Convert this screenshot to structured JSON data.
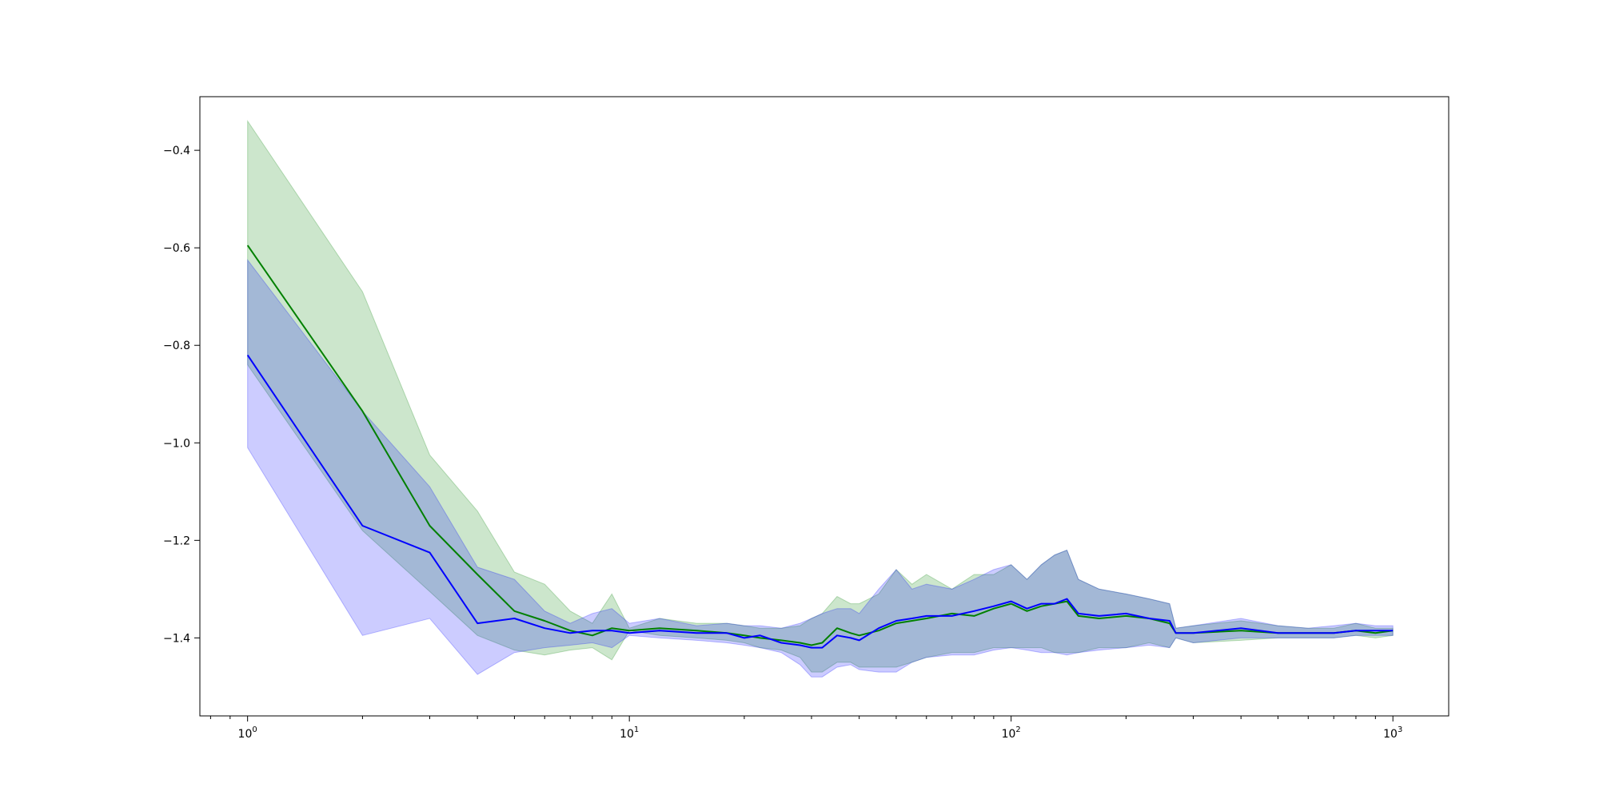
{
  "chart_data": {
    "type": "line",
    "title": "",
    "xlabel": "",
    "ylabel": "",
    "xscale": "log",
    "xlim": [
      0.75,
      1400
    ],
    "ylim": [
      -1.56,
      -0.29
    ],
    "grid": false,
    "legend": "none",
    "x_ticks": [
      {
        "value": 1,
        "base": "10",
        "exp": "0"
      },
      {
        "value": 10,
        "base": "10",
        "exp": "1"
      },
      {
        "value": 100,
        "base": "10",
        "exp": "2"
      },
      {
        "value": 1000,
        "base": "10",
        "exp": "3"
      }
    ],
    "y_ticks": [
      {
        "value": -0.4,
        "label": "−0.4"
      },
      {
        "value": -0.6,
        "label": "−0.6"
      },
      {
        "value": -0.8,
        "label": "−0.8"
      },
      {
        "value": -1.0,
        "label": "−1.0"
      },
      {
        "value": -1.2,
        "label": "−1.2"
      },
      {
        "value": -1.4,
        "label": "−1.4"
      }
    ],
    "series": [
      {
        "color": "#008000",
        "band_color": "#008000",
        "x": [
          1,
          2,
          3,
          4,
          5,
          6,
          7,
          8,
          9,
          10,
          12,
          15,
          18,
          20,
          22,
          25,
          28,
          30,
          32,
          35,
          38,
          40,
          45,
          50,
          55,
          60,
          70,
          80,
          90,
          100,
          110,
          120,
          130,
          140,
          150,
          170,
          200,
          230,
          260,
          270,
          300,
          400,
          500,
          600,
          700,
          800,
          900,
          1000
        ],
        "mean": [
          -0.595,
          -0.935,
          -1.17,
          -1.27,
          -1.345,
          -1.365,
          -1.385,
          -1.395,
          -1.38,
          -1.385,
          -1.38,
          -1.385,
          -1.39,
          -1.395,
          -1.4,
          -1.405,
          -1.41,
          -1.415,
          -1.41,
          -1.38,
          -1.39,
          -1.395,
          -1.385,
          -1.37,
          -1.365,
          -1.36,
          -1.35,
          -1.355,
          -1.34,
          -1.33,
          -1.345,
          -1.335,
          -1.33,
          -1.325,
          -1.355,
          -1.36,
          -1.355,
          -1.36,
          -1.37,
          -1.39,
          -1.39,
          -1.385,
          -1.39,
          -1.39,
          -1.39,
          -1.385,
          -1.39,
          -1.385
        ],
        "upper": [
          -0.34,
          -0.69,
          -1.025,
          -1.14,
          -1.265,
          -1.29,
          -1.345,
          -1.37,
          -1.31,
          -1.38,
          -1.36,
          -1.37,
          -1.37,
          -1.375,
          -1.38,
          -1.38,
          -1.375,
          -1.36,
          -1.35,
          -1.315,
          -1.33,
          -1.33,
          -1.31,
          -1.26,
          -1.29,
          -1.27,
          -1.3,
          -1.27,
          -1.27,
          -1.25,
          -1.28,
          -1.25,
          -1.23,
          -1.22,
          -1.28,
          -1.3,
          -1.31,
          -1.32,
          -1.33,
          -1.38,
          -1.375,
          -1.365,
          -1.375,
          -1.38,
          -1.38,
          -1.37,
          -1.38,
          -1.38
        ],
        "lower": [
          -0.84,
          -1.18,
          -1.305,
          -1.395,
          -1.425,
          -1.435,
          -1.425,
          -1.42,
          -1.445,
          -1.385,
          -1.395,
          -1.4,
          -1.405,
          -1.41,
          -1.42,
          -1.425,
          -1.44,
          -1.47,
          -1.47,
          -1.45,
          -1.45,
          -1.46,
          -1.46,
          -1.46,
          -1.45,
          -1.44,
          -1.43,
          -1.43,
          -1.42,
          -1.42,
          -1.42,
          -1.42,
          -1.43,
          -1.43,
          -1.43,
          -1.42,
          -1.42,
          -1.41,
          -1.42,
          -1.4,
          -1.41,
          -1.405,
          -1.4,
          -1.4,
          -1.4,
          -1.395,
          -1.4,
          -1.395
        ]
      },
      {
        "color": "#0000ff",
        "band_color": "#0000ff",
        "x": [
          1,
          2,
          3,
          4,
          5,
          6,
          7,
          8,
          9,
          10,
          12,
          15,
          18,
          20,
          22,
          25,
          28,
          30,
          32,
          35,
          38,
          40,
          45,
          50,
          55,
          60,
          70,
          80,
          90,
          100,
          110,
          120,
          130,
          140,
          150,
          170,
          200,
          230,
          260,
          270,
          300,
          400,
          500,
          600,
          700,
          800,
          900,
          1000
        ],
        "mean": [
          -0.82,
          -1.17,
          -1.225,
          -1.37,
          -1.36,
          -1.38,
          -1.39,
          -1.385,
          -1.385,
          -1.39,
          -1.385,
          -1.39,
          -1.39,
          -1.4,
          -1.395,
          -1.41,
          -1.415,
          -1.42,
          -1.42,
          -1.395,
          -1.4,
          -1.405,
          -1.38,
          -1.365,
          -1.36,
          -1.355,
          -1.355,
          -1.345,
          -1.335,
          -1.325,
          -1.34,
          -1.33,
          -1.33,
          -1.32,
          -1.35,
          -1.355,
          -1.35,
          -1.36,
          -1.365,
          -1.39,
          -1.39,
          -1.38,
          -1.39,
          -1.39,
          -1.39,
          -1.385,
          -1.385,
          -1.385
        ],
        "upper": [
          -0.625,
          -0.935,
          -1.09,
          -1.255,
          -1.28,
          -1.345,
          -1.37,
          -1.35,
          -1.34,
          -1.37,
          -1.36,
          -1.375,
          -1.37,
          -1.375,
          -1.375,
          -1.38,
          -1.37,
          -1.36,
          -1.35,
          -1.34,
          -1.34,
          -1.35,
          -1.3,
          -1.26,
          -1.3,
          -1.29,
          -1.3,
          -1.28,
          -1.26,
          -1.25,
          -1.28,
          -1.25,
          -1.23,
          -1.22,
          -1.28,
          -1.3,
          -1.31,
          -1.32,
          -1.33,
          -1.38,
          -1.375,
          -1.36,
          -1.375,
          -1.38,
          -1.375,
          -1.37,
          -1.375,
          -1.375
        ],
        "lower": [
          -1.01,
          -1.395,
          -1.36,
          -1.475,
          -1.43,
          -1.42,
          -1.415,
          -1.41,
          -1.42,
          -1.395,
          -1.4,
          -1.405,
          -1.41,
          -1.415,
          -1.42,
          -1.43,
          -1.455,
          -1.48,
          -1.48,
          -1.46,
          -1.455,
          -1.465,
          -1.47,
          -1.47,
          -1.45,
          -1.44,
          -1.435,
          -1.435,
          -1.425,
          -1.42,
          -1.425,
          -1.43,
          -1.43,
          -1.435,
          -1.43,
          -1.425,
          -1.42,
          -1.415,
          -1.42,
          -1.4,
          -1.41,
          -1.4,
          -1.4,
          -1.4,
          -1.4,
          -1.395,
          -1.395,
          -1.395
        ]
      }
    ]
  }
}
